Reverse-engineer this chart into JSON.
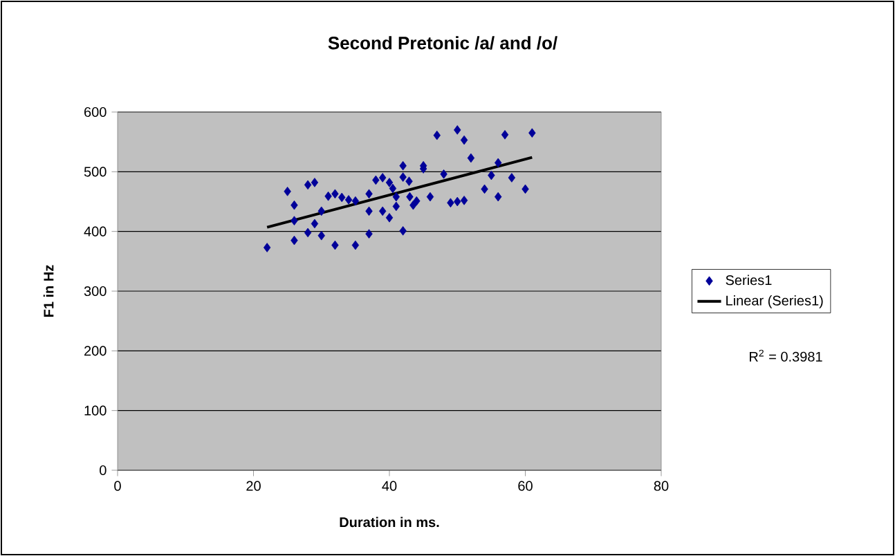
{
  "chart_data": {
    "type": "scatter",
    "title": "Second Pretonic /a/ and /o/",
    "xlabel": "Duration in ms.",
    "ylabel": "F1 in Hz",
    "xlim": [
      0,
      80
    ],
    "xticks": [
      0,
      20,
      40,
      60,
      80
    ],
    "ylim": [
      0,
      600
    ],
    "yticks": [
      0,
      100,
      200,
      300,
      400,
      500,
      600
    ],
    "grid": "y",
    "legend": "right",
    "marker": "diamond",
    "annotations": [
      "R$^{2}$ = 0.3981"
    ],
    "series": [
      {
        "name": "Series1",
        "color": "#000099",
        "x": [
          22,
          25,
          26,
          26,
          26,
          28,
          29,
          28,
          29,
          30,
          30,
          31,
          32,
          32,
          33,
          34,
          35,
          35,
          37,
          37,
          37,
          38,
          39,
          39,
          40,
          40,
          40.5,
          41,
          41,
          42,
          42,
          42,
          42.9,
          43,
          43.5,
          44,
          45,
          45,
          46,
          47,
          48,
          49,
          50,
          50,
          51,
          51,
          52,
          54,
          55,
          56,
          56,
          57,
          58,
          60,
          61
        ],
        "values": [
          373,
          467,
          444,
          418,
          385,
          478,
          482,
          398,
          413,
          434,
          393,
          459,
          463,
          377,
          457,
          453,
          451,
          377,
          463,
          434,
          396,
          486,
          490,
          434,
          482,
          423,
          472,
          442,
          458,
          510,
          491,
          401,
          484,
          458,
          444,
          451,
          510,
          505,
          458,
          561,
          496,
          448,
          570,
          450,
          553,
          452,
          523,
          471,
          494,
          515,
          458,
          562,
          490,
          471,
          565
        ]
      },
      {
        "name": "Linear (Series1)",
        "color": "#000000",
        "type": "line",
        "marker": "none",
        "x": [
          22,
          61
        ],
        "values": [
          407,
          524
        ]
      }
    ]
  }
}
